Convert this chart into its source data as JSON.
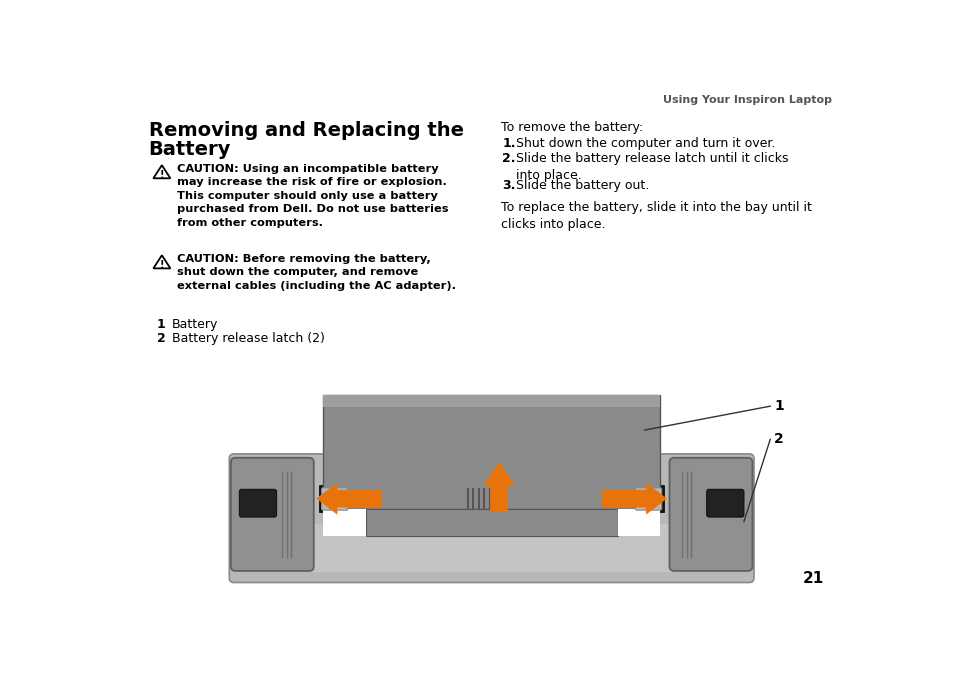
{
  "page_bg": "#ffffff",
  "header_text": "Using Your Inspiron Laptop",
  "title_line1": "Removing and Replacing the",
  "title_line2": "Battery",
  "caution1_text": "CAUTION: Using an incompatible battery\nmay increase the risk of fire or explosion.\nThis computer should only use a battery\npurchased from Dell. Do not use batteries\nfrom other computers.",
  "caution2_text": "CAUTION: Before removing the battery,\nshut down the computer, and remove\nexternal cables (including the AC adapter).",
  "item1_num": "1",
  "item1_text": "Battery",
  "item2_num": "2",
  "item2_text": "Battery release latch (2)",
  "right_intro": "To remove the battery:",
  "step1": "Shut down the computer and turn it over.",
  "step2": "Slide the battery release latch until it clicks\ninto place.",
  "step3": "Slide the battery out.",
  "replace_text": "To replace the battery, slide it into the bay until it\nclicks into place.",
  "page_number": "21",
  "orange": "#E8730A",
  "chassis_fill": "#b8b8b8",
  "chassis_edge": "#888888",
  "latch_fill": "#909090",
  "latch_edge": "#606060",
  "battery_fill": "#8a8a8a",
  "battery_edge": "#555555",
  "strip_fill": "#111111",
  "slider_fill": "#aaaaaa",
  "btn_fill": "#2a2a2a"
}
